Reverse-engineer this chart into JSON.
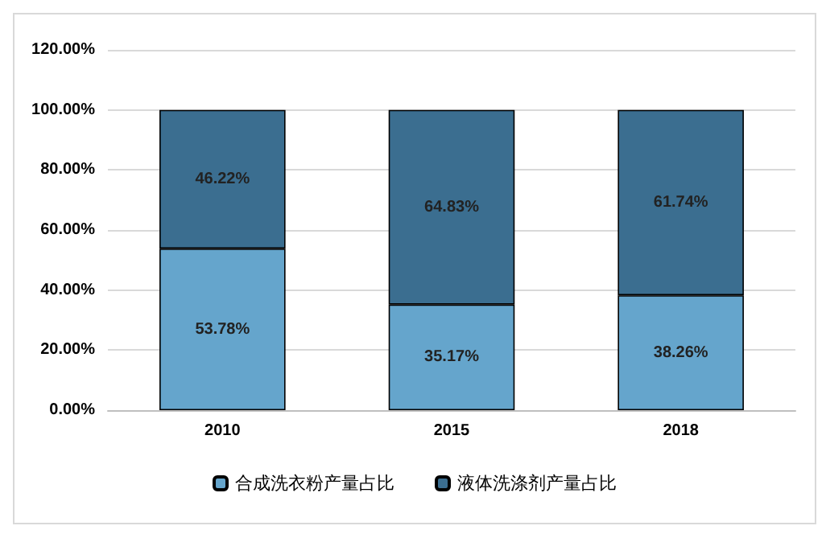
{
  "chart_data": {
    "type": "bar",
    "stacked": true,
    "categories": [
      "2010",
      "2015",
      "2018"
    ],
    "series": [
      {
        "name": "合成洗衣粉产量占比",
        "color": "#65a5cc",
        "values": [
          53.78,
          35.17,
          38.26
        ],
        "value_labels": [
          "53.78%",
          "35.17%",
          "38.26%"
        ]
      },
      {
        "name": "液体洗涤剂产量占比",
        "color": "#3b6e90",
        "values": [
          46.22,
          64.83,
          61.74
        ],
        "value_labels": [
          "46.22%",
          "64.83%",
          "61.74%"
        ]
      }
    ],
    "ylim": [
      0,
      120
    ],
    "yticks": [
      {
        "value": 0,
        "label": "0.00%"
      },
      {
        "value": 20,
        "label": "20.00%"
      },
      {
        "value": 40,
        "label": "40.00%"
      },
      {
        "value": 60,
        "label": "60.00%"
      },
      {
        "value": 80,
        "label": "80.00%"
      },
      {
        "value": 100,
        "label": "100.00%"
      },
      {
        "value": 120,
        "label": "120.00%"
      }
    ],
    "grid": "y",
    "legend": "bottom"
  }
}
